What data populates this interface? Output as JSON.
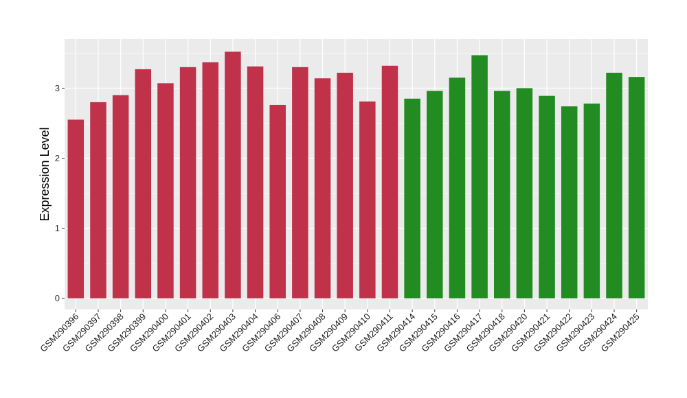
{
  "chart_data": {
    "type": "bar",
    "title": "",
    "xlabel": "",
    "ylabel": "Expression Level",
    "ylim": [
      -0.16,
      3.7
    ],
    "yticks": [
      0,
      1,
      2,
      3
    ],
    "grid": true,
    "legend": "none",
    "panel_background": "#ebebeb",
    "gridline_color": "#ffffff",
    "group_colors": {
      "group1": "#c0324a",
      "group2": "#228b22"
    },
    "categories": [
      "GSM290396",
      "GSM290397",
      "GSM290398",
      "GSM290399",
      "GSM290400",
      "GSM290401",
      "GSM290402",
      "GSM290403",
      "GSM290404",
      "GSM290406",
      "GSM290407",
      "GSM290408",
      "GSM290409",
      "GSM290410",
      "GSM290411",
      "GSM290414",
      "GSM290415",
      "GSM290416",
      "GSM290417",
      "GSM290418",
      "GSM290420",
      "GSM290421",
      "GSM290422",
      "GSM290423",
      "GSM290424",
      "GSM290425"
    ],
    "values": [
      2.55,
      2.8,
      2.9,
      3.27,
      3.07,
      3.3,
      3.37,
      3.52,
      3.31,
      2.76,
      3.3,
      3.14,
      3.22,
      2.81,
      3.32,
      2.85,
      2.96,
      3.15,
      3.47,
      2.96,
      3.0,
      2.89,
      2.74,
      2.78,
      3.22,
      3.16
    ],
    "groups": [
      "group1",
      "group1",
      "group1",
      "group1",
      "group1",
      "group1",
      "group1",
      "group1",
      "group1",
      "group1",
      "group1",
      "group1",
      "group1",
      "group1",
      "group1",
      "group2",
      "group2",
      "group2",
      "group2",
      "group2",
      "group2",
      "group2",
      "group2",
      "group2",
      "group2",
      "group2"
    ]
  }
}
